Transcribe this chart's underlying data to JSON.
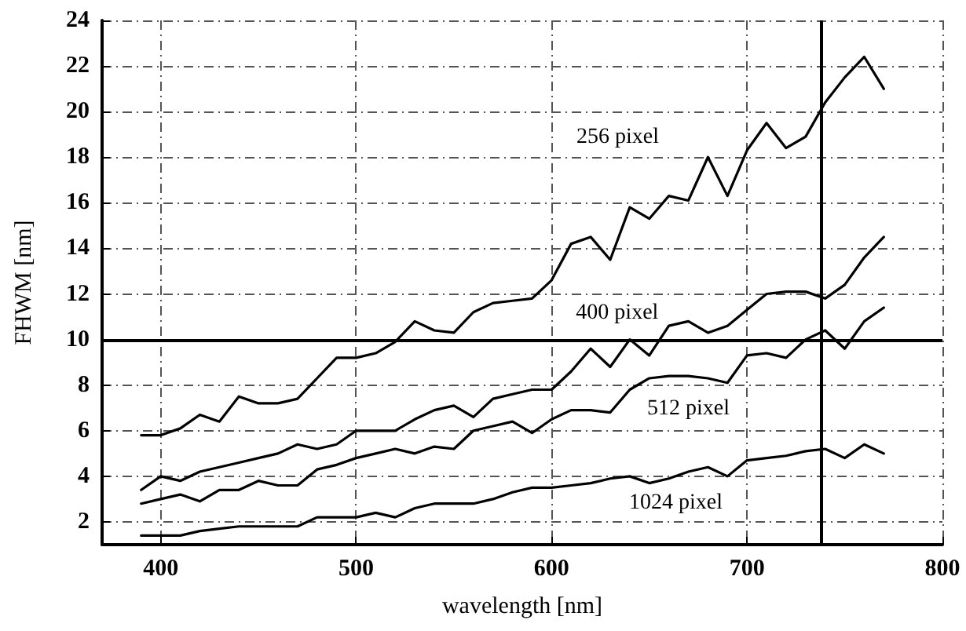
{
  "chart_data": {
    "type": "line",
    "xlabel": "wavelength [nm]",
    "ylabel": "FHWM [nm]",
    "x": [
      390,
      400,
      410,
      420,
      430,
      440,
      450,
      460,
      470,
      480,
      490,
      500,
      510,
      520,
      530,
      540,
      550,
      560,
      570,
      580,
      590,
      600,
      610,
      620,
      630,
      640,
      650,
      660,
      670,
      680,
      690,
      700,
      710,
      720,
      730,
      740,
      750,
      760,
      770
    ],
    "series": [
      {
        "name": "256 pixel",
        "color": "#000000",
        "values": [
          5.8,
          5.8,
          6.1,
          6.7,
          6.4,
          7.5,
          7.2,
          7.2,
          7.4,
          8.3,
          9.2,
          9.2,
          9.4,
          9.9,
          10.8,
          10.4,
          10.3,
          11.2,
          11.6,
          11.7,
          11.8,
          12.6,
          14.2,
          14.5,
          13.5,
          15.8,
          15.3,
          16.3,
          16.1,
          18.0,
          16.3,
          18.3,
          19.5,
          18.4,
          18.9,
          20.4,
          21.5,
          22.4,
          21.0
        ]
      },
      {
        "name": "400 pixel",
        "color": "#000000",
        "values": [
          3.4,
          4.0,
          3.8,
          4.2,
          4.4,
          4.6,
          4.8,
          5.0,
          5.4,
          5.2,
          5.4,
          6.0,
          6.0,
          6.0,
          6.5,
          6.9,
          7.1,
          6.6,
          7.4,
          7.6,
          7.8,
          7.8,
          8.6,
          9.6,
          8.8,
          10.0,
          9.3,
          10.6,
          10.8,
          10.3,
          10.6,
          11.3,
          12.0,
          12.1,
          12.1,
          11.8,
          12.4,
          13.6,
          14.5
        ]
      },
      {
        "name": "512 pixel",
        "color": "#000000",
        "values": [
          2.8,
          3.0,
          3.2,
          2.9,
          3.4,
          3.4,
          3.8,
          3.6,
          3.6,
          4.3,
          4.5,
          4.8,
          5.0,
          5.2,
          5.0,
          5.3,
          5.2,
          6.0,
          6.2,
          6.4,
          5.9,
          6.5,
          6.9,
          6.9,
          6.8,
          7.8,
          8.3,
          8.4,
          8.4,
          8.3,
          8.1,
          9.3,
          9.4,
          9.2,
          10.0,
          10.4,
          9.6,
          10.8,
          11.4
        ]
      },
      {
        "name": "1024 pixel",
        "color": "#000000",
        "values": [
          1.4,
          1.4,
          1.4,
          1.6,
          1.7,
          1.8,
          1.8,
          1.8,
          1.8,
          2.2,
          2.2,
          2.2,
          2.4,
          2.2,
          2.6,
          2.8,
          2.8,
          2.8,
          3.0,
          3.3,
          3.5,
          3.5,
          3.6,
          3.7,
          3.9,
          4.0,
          3.7,
          3.9,
          4.2,
          4.4,
          4.0,
          4.7,
          4.8,
          4.9,
          5.1,
          5.2,
          4.8,
          5.4,
          5.0
        ]
      }
    ],
    "xlim": [
      370,
      800
    ],
    "xticks": [
      400,
      500,
      600,
      700,
      800
    ],
    "ylim": [
      1,
      24
    ],
    "yticks": [
      2,
      4,
      6,
      8,
      10,
      12,
      14,
      16,
      18,
      20,
      22,
      24
    ],
    "ref_lines": [
      {
        "axis": "y",
        "value": 10,
        "color": "#000000"
      },
      {
        "axis": "x",
        "value": 738,
        "color": "#000000"
      }
    ],
    "grid": true,
    "marker": "none",
    "line_style": "solid"
  }
}
